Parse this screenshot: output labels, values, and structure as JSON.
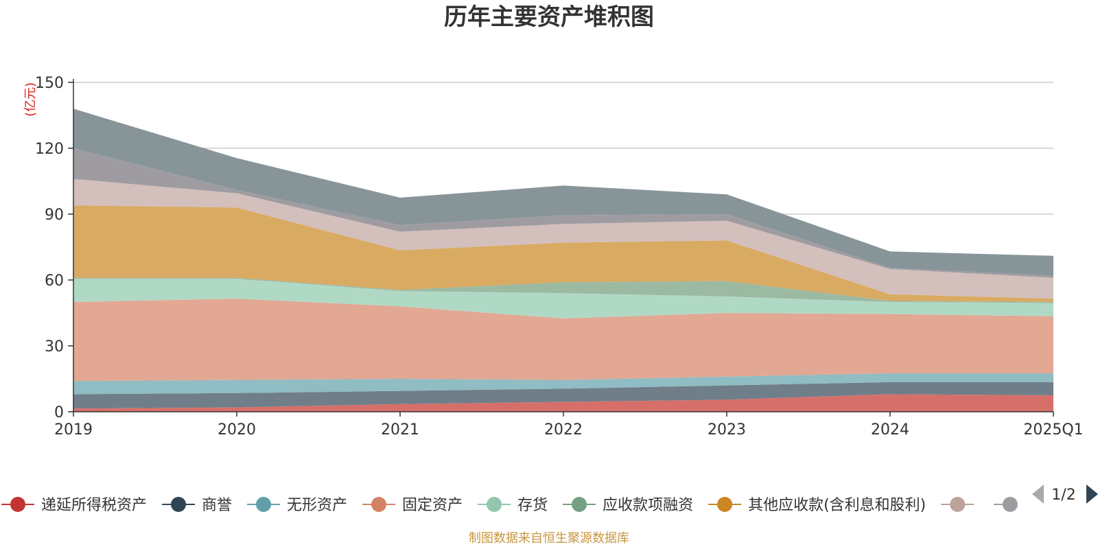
{
  "chart_data": {
    "type": "area",
    "stacked": true,
    "title": "历年主要资产堆积图",
    "ylabel": "(亿元)",
    "categories": [
      "2019",
      "2020",
      "2021",
      "2022",
      "2023",
      "2024",
      "2025Q1"
    ],
    "yticks": [
      0,
      30,
      60,
      90,
      120,
      150
    ],
    "ylim": [
      0,
      150
    ],
    "grid": true,
    "legend_position": "bottom",
    "series": [
      {
        "name": "递延所得税资产",
        "color": "#d66f6a",
        "legend_color": "#c23531",
        "values": [
          1.5,
          2.0,
          3.5,
          4.5,
          5.5,
          8.0,
          7.5
        ]
      },
      {
        "name": "商誉",
        "color": "#6f7e89",
        "legend_color": "#2f4554",
        "values": [
          6.5,
          6.5,
          6.0,
          6.0,
          6.5,
          5.5,
          6.0
        ]
      },
      {
        "name": "无形资产",
        "color": "#90bcc3",
        "legend_color": "#61a0a8",
        "values": [
          6.0,
          6.0,
          5.5,
          4.0,
          4.0,
          4.0,
          4.0
        ]
      },
      {
        "name": "固定资产",
        "color": "#e2a893",
        "legend_color": "#d48265",
        "values": [
          36.0,
          37.0,
          33.0,
          28.0,
          29.0,
          27.0,
          26.0
        ]
      },
      {
        "name": "存货",
        "color": "#b0d9c5",
        "legend_color": "#91c7ae",
        "values": [
          10.5,
          9.0,
          7.0,
          11.5,
          7.5,
          5.5,
          6.0
        ]
      },
      {
        "name": "应收款项融资",
        "color": "#9cb9a2",
        "legend_color": "#749f83",
        "values": [
          0.5,
          0.5,
          0.5,
          5.0,
          7.0,
          0.5,
          0.5
        ]
      },
      {
        "name": "其他应收款(含利息和股利)",
        "color": "#d9aa62",
        "legend_color": "#ca8622",
        "values": [
          33.0,
          32.0,
          18.0,
          18.0,
          18.5,
          3.0,
          1.5
        ]
      },
      {
        "name": "",
        "color": "#d3bfbb",
        "legend_color": "#bda29a",
        "values": [
          12.0,
          6.5,
          8.5,
          8.5,
          9.0,
          11.5,
          9.5
        ]
      },
      {
        "name": "",
        "color": "#9e9ca1",
        "legend_color": "#9e9ca1",
        "values": [
          14.0,
          1.5,
          3.0,
          4.0,
          3.0,
          0.5,
          1.0
        ]
      },
      {
        "name": "",
        "color": "#879599",
        "legend_color": "#879599",
        "values": [
          18.0,
          14.5,
          12.5,
          13.5,
          9.0,
          7.5,
          9.0
        ]
      }
    ],
    "legend_visible_count": 8,
    "pager": "1/2",
    "source": "制图数据来自恒生聚源数据库"
  }
}
